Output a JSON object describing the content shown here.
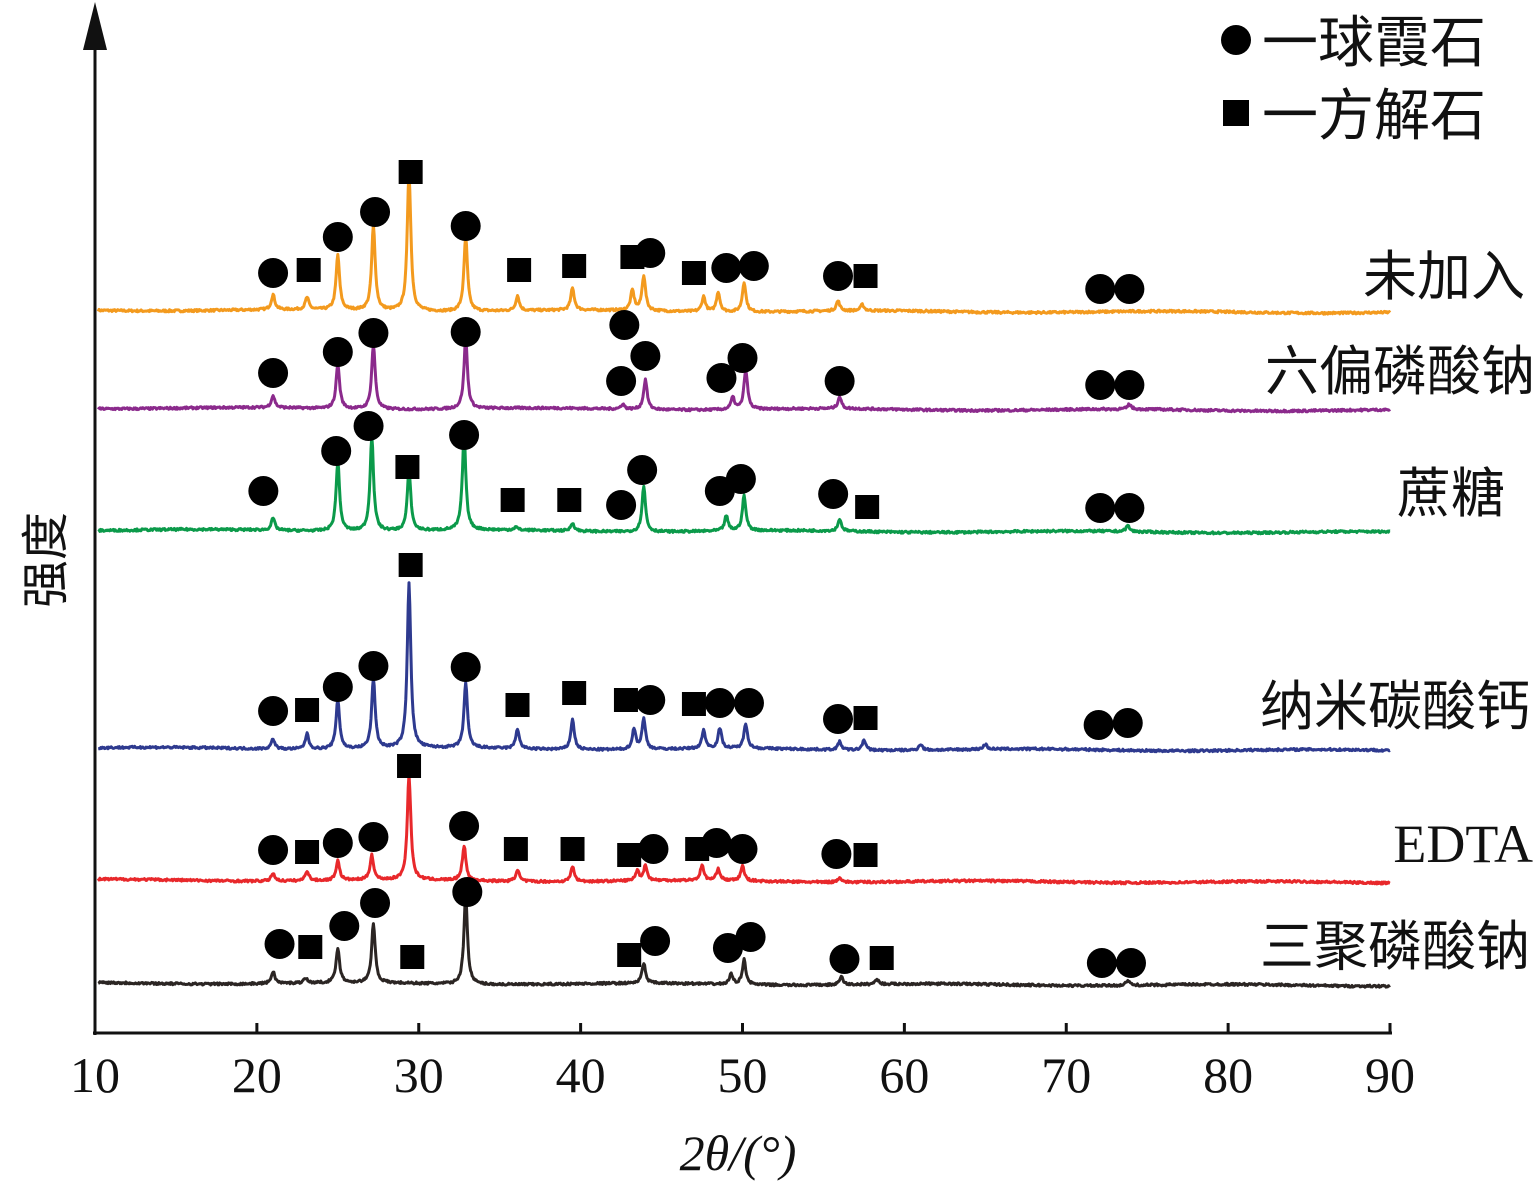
{
  "chart_data": {
    "type": "line",
    "title": "",
    "xlabel": "2θ/(°)",
    "ylabel": "强度",
    "xlim": [
      10,
      90
    ],
    "ylim": [
      0,
      1020
    ],
    "xticks": [
      "10",
      "20",
      "30",
      "40",
      "50",
      "60",
      "70",
      "80",
      "90"
    ],
    "grid": false,
    "legend": {
      "placement": "top-right",
      "entries": [
        {
          "marker": "circle",
          "label": "一球霞石"
        },
        {
          "marker": "square",
          "label": "一方解石"
        }
      ]
    },
    "series": [
      {
        "name": "未加入",
        "color": "#f39a1e",
        "offset": 723,
        "peaks": [
          [
            21.0,
            15
          ],
          [
            23.1,
            12
          ],
          [
            25.0,
            55
          ],
          [
            27.2,
            85
          ],
          [
            29.4,
            140
          ],
          [
            32.9,
            75
          ],
          [
            36.1,
            15
          ],
          [
            39.5,
            22
          ],
          [
            43.2,
            20
          ],
          [
            43.9,
            35
          ],
          [
            47.6,
            15
          ],
          [
            48.5,
            20
          ],
          [
            50.1,
            30
          ],
          [
            55.9,
            10
          ],
          [
            57.4,
            6
          ]
        ],
        "circles": [
          [
            21.0,
            760
          ],
          [
            25.0,
            796
          ],
          [
            27.3,
            821
          ],
          [
            32.9,
            807
          ],
          [
            44.3,
            780
          ],
          [
            49.0,
            765
          ],
          [
            50.7,
            767
          ],
          [
            55.9,
            757
          ],
          [
            72.1,
            744
          ],
          [
            73.9,
            744
          ]
        ],
        "squares": [
          [
            23.2,
            763
          ],
          [
            29.5,
            861
          ],
          [
            36.2,
            763
          ],
          [
            39.6,
            767
          ],
          [
            43.2,
            776
          ],
          [
            47.0,
            760
          ],
          [
            57.6,
            757
          ]
        ]
      },
      {
        "name": "六偏磷酸钠",
        "color": "#8b2a8c",
        "offset": 625,
        "peaks": [
          [
            21.0,
            12
          ],
          [
            25.0,
            45
          ],
          [
            27.2,
            65
          ],
          [
            32.9,
            70
          ],
          [
            42.6,
            5
          ],
          [
            44.0,
            30
          ],
          [
            49.4,
            12
          ],
          [
            50.2,
            40
          ],
          [
            56.0,
            12
          ],
          [
            73.9,
            5
          ]
        ],
        "circles": [
          [
            21.0,
            660
          ],
          [
            25.0,
            681
          ],
          [
            27.2,
            700
          ],
          [
            32.9,
            701
          ],
          [
            42.7,
            708
          ],
          [
            44.0,
            677
          ],
          [
            42.5,
            652
          ],
          [
            48.7,
            655
          ],
          [
            50.0,
            675
          ],
          [
            56.0,
            652
          ],
          [
            72.1,
            648
          ],
          [
            73.9,
            648
          ]
        ],
        "squares": []
      },
      {
        "name": "蔗糖",
        "color": "#0b9a4a",
        "offset": 503,
        "peaks": [
          [
            21.0,
            12
          ],
          [
            25.0,
            70
          ],
          [
            27.1,
            95
          ],
          [
            29.4,
            60
          ],
          [
            32.8,
            95
          ],
          [
            36.0,
            3
          ],
          [
            39.5,
            8
          ],
          [
            43.9,
            45
          ],
          [
            49.0,
            15
          ],
          [
            50.1,
            35
          ],
          [
            56.0,
            12
          ],
          [
            73.8,
            6
          ]
        ],
        "circles": [
          [
            20.4,
            542
          ],
          [
            24.9,
            582
          ],
          [
            26.9,
            607
          ],
          [
            32.8,
            598
          ],
          [
            42.5,
            528
          ],
          [
            43.8,
            563
          ],
          [
            48.6,
            542
          ],
          [
            49.9,
            554
          ],
          [
            55.6,
            539
          ],
          [
            72.1,
            525
          ],
          [
            73.9,
            525
          ]
        ],
        "squares": [
          [
            29.3,
            566
          ],
          [
            35.8,
            533
          ],
          [
            39.3,
            533
          ],
          [
            57.7,
            526
          ]
        ]
      },
      {
        "name": "纳米碳酸钙",
        "color": "#2e3a8f",
        "offset": 285,
        "peaks": [
          [
            21.0,
            10
          ],
          [
            23.1,
            15
          ],
          [
            25.0,
            50
          ],
          [
            27.2,
            70
          ],
          [
            29.4,
            165
          ],
          [
            32.9,
            65
          ],
          [
            36.1,
            20
          ],
          [
            39.5,
            30
          ],
          [
            43.3,
            20
          ],
          [
            43.9,
            30
          ],
          [
            47.6,
            18
          ],
          [
            48.6,
            20
          ],
          [
            50.2,
            25
          ],
          [
            56.0,
            8
          ],
          [
            57.5,
            10
          ],
          [
            61.0,
            6
          ],
          [
            65.0,
            5
          ]
        ],
        "circles": [
          [
            21.0,
            322
          ],
          [
            25.0,
            346
          ],
          [
            27.2,
            367
          ],
          [
            32.9,
            366
          ],
          [
            44.3,
            333
          ],
          [
            48.6,
            330
          ],
          [
            50.4,
            330
          ],
          [
            55.9,
            314
          ],
          [
            72.0,
            308
          ],
          [
            73.8,
            310
          ]
        ],
        "squares": [
          [
            23.1,
            323
          ],
          [
            29.5,
            468
          ],
          [
            36.1,
            328
          ],
          [
            39.6,
            340
          ],
          [
            42.8,
            333
          ],
          [
            47.0,
            329
          ],
          [
            57.6,
            315
          ]
        ]
      },
      {
        "name": "EDTA",
        "color": "#e8282b",
        "offset": 153,
        "peaks": [
          [
            21.0,
            8
          ],
          [
            23.1,
            10
          ],
          [
            25.0,
            20
          ],
          [
            27.1,
            25
          ],
          [
            29.4,
            105
          ],
          [
            32.8,
            35
          ],
          [
            36.1,
            12
          ],
          [
            39.5,
            15
          ],
          [
            43.5,
            10
          ],
          [
            44.0,
            15
          ],
          [
            47.5,
            15
          ],
          [
            48.5,
            12
          ],
          [
            50.0,
            15
          ],
          [
            56.0,
            5
          ]
        ],
        "circles": [
          [
            21.0,
            183
          ],
          [
            25.0,
            190
          ],
          [
            27.2,
            196
          ],
          [
            32.8,
            207
          ],
          [
            44.5,
            184
          ],
          [
            48.4,
            190
          ],
          [
            50.0,
            184
          ],
          [
            55.8,
            179
          ]
        ],
        "squares": [
          [
            23.1,
            181
          ],
          [
            29.4,
            267
          ],
          [
            36.0,
            184
          ],
          [
            39.5,
            184
          ],
          [
            43.0,
            178
          ],
          [
            47.2,
            184
          ],
          [
            57.6,
            178
          ]
        ]
      },
      {
        "name": "三聚磷酸钠",
        "color": "#2b2523",
        "offset": 50,
        "peaks": [
          [
            21.0,
            12
          ],
          [
            23.0,
            5
          ],
          [
            25.0,
            35
          ],
          [
            27.2,
            60
          ],
          [
            32.9,
            90
          ],
          [
            43.9,
            20
          ],
          [
            49.3,
            10
          ],
          [
            50.1,
            25
          ],
          [
            56.1,
            8
          ],
          [
            58.3,
            5
          ],
          [
            73.8,
            5
          ]
        ],
        "circles": [
          [
            21.4,
            89
          ],
          [
            25.4,
            107
          ],
          [
            27.3,
            130
          ],
          [
            33.0,
            141
          ],
          [
            44.6,
            92
          ],
          [
            49.1,
            85
          ],
          [
            50.5,
            96
          ],
          [
            56.3,
            74
          ],
          [
            72.2,
            70
          ],
          [
            74.0,
            70
          ]
        ],
        "squares": [
          [
            23.3,
            86
          ],
          [
            29.6,
            76
          ],
          [
            43.0,
            78
          ],
          [
            58.6,
            75
          ]
        ]
      }
    ]
  }
}
